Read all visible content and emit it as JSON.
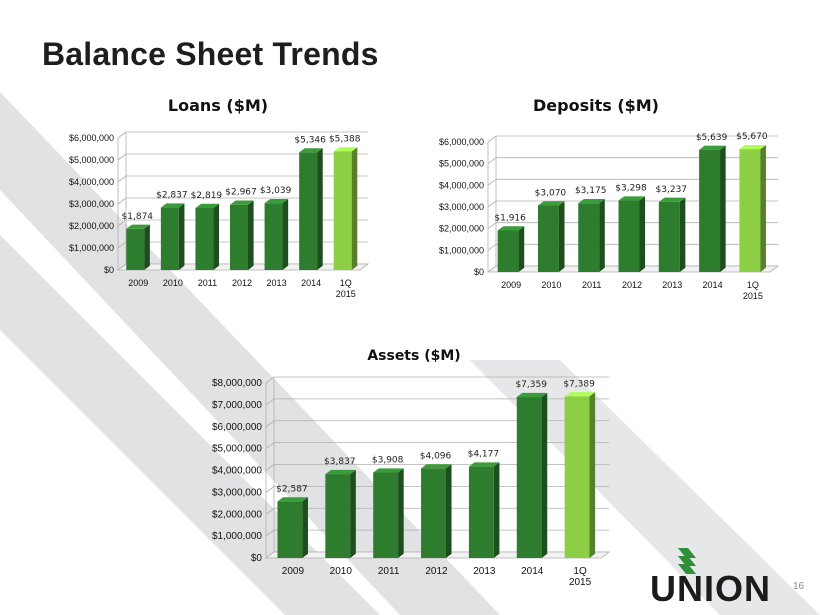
{
  "slide": {
    "title": "Balance Sheet Trends",
    "page_number": "16",
    "logo_text": "UNION",
    "colors": {
      "bar_dark": "#2e7d2e",
      "bar_highlight": "#8ccf45",
      "stripe": "#e1e2e3",
      "logo_green": "#2f8f3a"
    }
  },
  "chart_data": [
    {
      "type": "bar",
      "title": "Loans ($M)",
      "categories": [
        "2009",
        "2010",
        "2011",
        "2012",
        "2013",
        "2014",
        "1Q 2015"
      ],
      "values": [
        1874000,
        2837000,
        2819000,
        2967000,
        3039000,
        5346000,
        5388000
      ],
      "data_labels": [
        "$1,874",
        "$2,837",
        "$2,819",
        "$2,967",
        "$3,039",
        "$5,346",
        "$5,388"
      ],
      "ylim": [
        0,
        6000000
      ],
      "yticks": [
        0,
        1000000,
        2000000,
        3000000,
        4000000,
        5000000,
        6000000
      ],
      "ytick_labels": [
        "$0",
        "$1,000,000",
        "$2,000,000",
        "$3,000,000",
        "$4,000,000",
        "$5,000,000",
        "$6,000,000"
      ],
      "grid": true,
      "highlight_last": true
    },
    {
      "type": "bar",
      "title": "Deposits ($M)",
      "categories": [
        "2009",
        "2010",
        "2011",
        "2012",
        "2013",
        "2014",
        "1Q 2015"
      ],
      "values": [
        1916000,
        3070000,
        3175000,
        3298000,
        3237000,
        5639000,
        5670000
      ],
      "data_labels": [
        "$1,916",
        "$3,070",
        "$3,175",
        "$3,298",
        "$3,237",
        "$5,639",
        "$5,670"
      ],
      "ylim": [
        0,
        6000000
      ],
      "yticks": [
        0,
        1000000,
        2000000,
        3000000,
        4000000,
        5000000,
        6000000
      ],
      "ytick_labels": [
        "$0",
        "$1,000,000",
        "$2,000,000",
        "$3,000,000",
        "$4,000,000",
        "$5,000,000",
        "$6,000,000"
      ],
      "grid": true,
      "highlight_last": true
    },
    {
      "type": "bar",
      "title": "Assets ($M)",
      "categories": [
        "2009",
        "2010",
        "2011",
        "2012",
        "2013",
        "2014",
        "1Q 2015"
      ],
      "values": [
        2587000,
        3837000,
        3908000,
        4096000,
        4177000,
        7359000,
        7389000
      ],
      "data_labels": [
        "$2,587",
        "$3,837",
        "$3,908",
        "$4,096",
        "$4,177",
        "$7,359",
        "$7,389"
      ],
      "ylim": [
        0,
        8000000
      ],
      "yticks": [
        0,
        1000000,
        2000000,
        3000000,
        4000000,
        5000000,
        6000000,
        7000000,
        8000000
      ],
      "ytick_labels": [
        "$0",
        "$1,000,000",
        "$2,000,000",
        "$3,000,000",
        "$4,000,000",
        "$5,000,000",
        "$6,000,000",
        "$7,000,000",
        "$8,000,000"
      ],
      "grid": true,
      "highlight_last": true
    }
  ]
}
